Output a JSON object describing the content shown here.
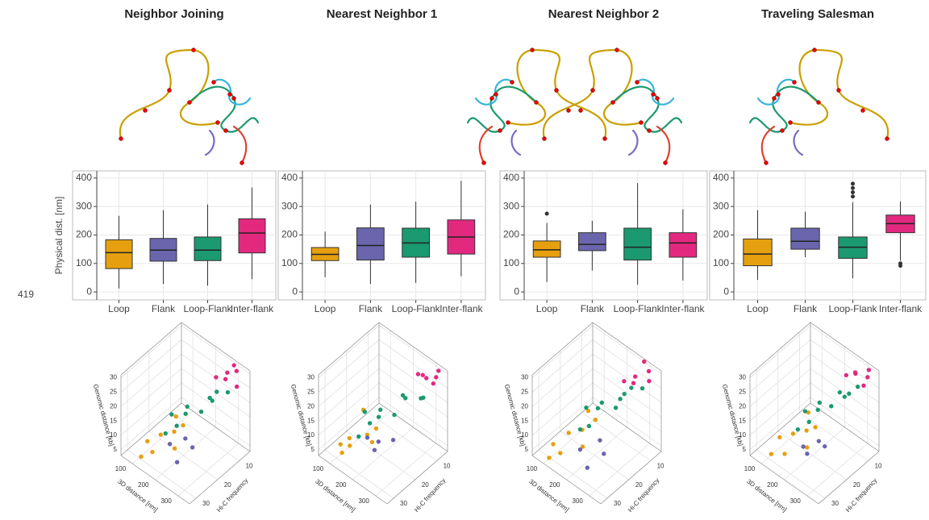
{
  "page_number": 419,
  "chart_data": [
    {
      "type": "box",
      "title": "Neighbor Joining",
      "ylabel": "Physical dist. [nm]",
      "categories": [
        "Loop",
        "Flank",
        "Loop-Flank",
        "Inter-flank"
      ],
      "colors": [
        "#e6a00f",
        "#6a65ad",
        "#1b9970",
        "#e2297f"
      ],
      "boxes": [
        {
          "min": 12,
          "q1": 82,
          "median": 138,
          "q3": 183,
          "max": 267,
          "outliers": []
        },
        {
          "min": 28,
          "q1": 108,
          "median": 147,
          "q3": 188,
          "max": 287,
          "outliers": []
        },
        {
          "min": 22,
          "q1": 110,
          "median": 147,
          "q3": 193,
          "max": 307,
          "outliers": []
        },
        {
          "min": 45,
          "q1": 137,
          "median": 207,
          "q3": 257,
          "max": 367,
          "outliers": []
        }
      ],
      "ylim": [
        -28,
        425
      ],
      "yticks": [
        0,
        100,
        200,
        300,
        400
      ],
      "grid": true
    },
    {
      "type": "box",
      "title": "Nearest Neighbor 1",
      "categories": [
        "Loop",
        "Flank",
        "Loop-Flank",
        "Inter-flank"
      ],
      "colors": [
        "#e6a00f",
        "#6a65ad",
        "#1b9970",
        "#e2297f"
      ],
      "boxes": [
        {
          "min": 52,
          "q1": 110,
          "median": 132,
          "q3": 156,
          "max": 212,
          "outliers": []
        },
        {
          "min": 28,
          "q1": 112,
          "median": 163,
          "q3": 225,
          "max": 307,
          "outliers": []
        },
        {
          "min": 32,
          "q1": 122,
          "median": 172,
          "q3": 224,
          "max": 317,
          "outliers": []
        },
        {
          "min": 55,
          "q1": 133,
          "median": 193,
          "q3": 253,
          "max": 390,
          "outliers": []
        }
      ],
      "ylim": [
        -28,
        425
      ],
      "yticks": [
        0,
        100,
        200,
        300,
        400
      ],
      "grid": true
    },
    {
      "type": "box",
      "title": "Nearest Neighbor 2",
      "categories": [
        "Loop",
        "Flank",
        "Loop-Flank",
        "Inter-flank"
      ],
      "colors": [
        "#e6a00f",
        "#6a65ad",
        "#1b9970",
        "#e2297f"
      ],
      "boxes": [
        {
          "min": 35,
          "q1": 122,
          "median": 148,
          "q3": 179,
          "max": 242,
          "outliers": [
            275
          ]
        },
        {
          "min": 75,
          "q1": 145,
          "median": 167,
          "q3": 208,
          "max": 250,
          "outliers": []
        },
        {
          "min": 25,
          "q1": 112,
          "median": 157,
          "q3": 224,
          "max": 382,
          "outliers": []
        },
        {
          "min": 40,
          "q1": 122,
          "median": 172,
          "q3": 208,
          "max": 290,
          "outliers": []
        }
      ],
      "ylim": [
        -28,
        425
      ],
      "yticks": [
        0,
        100,
        200,
        300,
        400
      ],
      "grid": true
    },
    {
      "type": "box",
      "title": "Traveling Salesman",
      "categories": [
        "Loop",
        "Flank",
        "Loop-Flank",
        "Inter-flank"
      ],
      "colors": [
        "#e6a00f",
        "#6a65ad",
        "#1b9970",
        "#e2297f"
      ],
      "boxes": [
        {
          "min": 42,
          "q1": 92,
          "median": 133,
          "q3": 186,
          "max": 287,
          "outliers": []
        },
        {
          "min": 122,
          "q1": 150,
          "median": 178,
          "q3": 224,
          "max": 282,
          "outliers": []
        },
        {
          "min": 48,
          "q1": 118,
          "median": 157,
          "q3": 193,
          "max": 315,
          "outliers": [
            335,
            350,
            365,
            380
          ]
        },
        {
          "min": 110,
          "q1": 208,
          "median": 240,
          "q3": 270,
          "max": 318,
          "outliers": [
            92,
            100
          ]
        }
      ],
      "ylim": [
        -28,
        425
      ],
      "yticks": [
        0,
        100,
        200,
        300,
        400
      ],
      "grid": true
    },
    {
      "type": "scatter3d",
      "xlabel": "3D distance [nm]",
      "ylabel": "Hi-C frequency",
      "zlabel": "Genomic distance [kb]",
      "xlim": [
        50,
        350
      ],
      "ylim": [
        5,
        33
      ],
      "zlim": [
        3,
        31
      ],
      "xticks": [
        100,
        200,
        300
      ],
      "yticks": [
        10,
        20,
        30
      ],
      "zticks": [
        5,
        10,
        15,
        20,
        25,
        30
      ],
      "series": [
        {
          "color": "#e6a00f",
          "x": [
            90,
            120,
            140,
            160,
            180,
            110,
            200,
            130
          ],
          "y": [
            25,
            22,
            28,
            20,
            18,
            30,
            24,
            16
          ],
          "z": [
            5,
            7,
            6,
            9,
            11,
            4,
            8,
            10
          ]
        },
        {
          "color": "#6a65ad",
          "x": [
            160,
            190,
            220,
            240
          ],
          "y": [
            22,
            18,
            25,
            20
          ],
          "z": [
            6,
            7,
            5,
            8
          ]
        },
        {
          "color": "#1b9970",
          "x": [
            130,
            170,
            210,
            240,
            270,
            300,
            190,
            250,
            160,
            280
          ],
          "y": [
            18,
            15,
            20,
            12,
            14,
            10,
            22,
            17,
            24,
            13
          ],
          "z": [
            12,
            15,
            18,
            20,
            22,
            24,
            14,
            19,
            11,
            25
          ]
        },
        {
          "color": "#e2297f",
          "x": [
            230,
            260,
            290,
            310,
            330,
            280
          ],
          "y": [
            8,
            6,
            10,
            7,
            9,
            5
          ],
          "z": [
            24,
            26,
            28,
            30,
            27,
            29
          ]
        }
      ]
    },
    {
      "type": "scatter3d",
      "xlabel": "3D distance [nm]",
      "ylabel": "Hi-C frequency",
      "zlabel": "Genomic distance [kb]",
      "xlim": [
        50,
        350
      ],
      "ylim": [
        5,
        33
      ],
      "zlim": [
        3,
        31
      ],
      "xticks": [
        100,
        200,
        300
      ],
      "yticks": [
        10,
        20,
        30
      ],
      "zticks": [
        5,
        10,
        15,
        20,
        25,
        30
      ],
      "series": [
        {
          "color": "#e6a00f",
          "x": [
            80,
            100,
            130,
            150,
            170,
            115,
            190,
            95
          ],
          "y": [
            26,
            24,
            27,
            21,
            19,
            29,
            23,
            17
          ],
          "z": [
            4,
            6,
            7,
            8,
            10,
            5,
            9,
            11
          ]
        },
        {
          "color": "#6a65ad",
          "x": [
            150,
            180,
            210,
            235
          ],
          "y": [
            21,
            19,
            24,
            18
          ],
          "z": [
            7,
            6,
            8,
            9
          ]
        },
        {
          "color": "#1b9970",
          "x": [
            120,
            160,
            200,
            230,
            260,
            290,
            180,
            240,
            150,
            310
          ],
          "y": [
            19,
            16,
            21,
            13,
            15,
            11,
            23,
            18,
            25,
            12
          ],
          "z": [
            13,
            14,
            17,
            21,
            23,
            22,
            15,
            18,
            10,
            24
          ]
        },
        {
          "color": "#e2297f",
          "x": [
            240,
            270,
            295,
            320,
            335,
            300
          ],
          "y": [
            7,
            8,
            9,
            6,
            10,
            5
          ],
          "z": [
            25,
            27,
            28,
            30,
            29,
            26
          ]
        }
      ]
    },
    {
      "type": "scatter3d",
      "xlabel": "3D distance [nm]",
      "ylabel": "Hi-C frequency",
      "zlabel": "Genomic distance [kb]",
      "xlim": [
        50,
        350
      ],
      "ylim": [
        5,
        33
      ],
      "zlim": [
        3,
        31
      ],
      "xticks": [
        100,
        200,
        300
      ],
      "yticks": [
        10,
        20,
        30
      ],
      "zticks": [
        5,
        10,
        15,
        20,
        25,
        30
      ],
      "series": [
        {
          "color": "#e6a00f",
          "x": [
            85,
            115,
            135,
            155,
            175,
            105,
            195,
            125
          ],
          "y": [
            27,
            23,
            29,
            21,
            17,
            31,
            25,
            15
          ],
          "z": [
            5,
            8,
            6,
            10,
            12,
            4,
            9,
            11
          ]
        },
        {
          "color": "#6a65ad",
          "x": [
            165,
            195,
            225,
            250
          ],
          "y": [
            23,
            17,
            26,
            21
          ],
          "z": [
            5,
            6,
            4,
            7
          ]
        },
        {
          "color": "#1b9970",
          "x": [
            135,
            175,
            205,
            245,
            265,
            305,
            185,
            255,
            165,
            285
          ],
          "y": [
            17,
            14,
            19,
            11,
            15,
            9,
            21,
            16,
            23,
            12
          ],
          "z": [
            14,
            16,
            19,
            21,
            23,
            25,
            13,
            20,
            12,
            26
          ]
        },
        {
          "color": "#e2297f",
          "x": [
            225,
            255,
            285,
            305,
            325,
            275
          ],
          "y": [
            9,
            7,
            11,
            6,
            8,
            5
          ],
          "z": [
            23,
            25,
            27,
            29,
            28,
            30
          ]
        }
      ]
    },
    {
      "type": "scatter3d",
      "xlabel": "3D distance [nm]",
      "ylabel": "Hi-C frequency",
      "zlabel": "Genomic distance [kb]",
      "xlim": [
        50,
        350
      ],
      "ylim": [
        5,
        33
      ],
      "zlim": [
        3,
        31
      ],
      "xticks": [
        100,
        200,
        300
      ],
      "yticks": [
        10,
        20,
        30
      ],
      "zticks": [
        5,
        10,
        15,
        20,
        25,
        30
      ],
      "series": [
        {
          "color": "#e6a00f",
          "x": [
            95,
            125,
            145,
            165,
            185,
            105,
            205,
            135
          ],
          "y": [
            24,
            21,
            27,
            19,
            17,
            29,
            23,
            15
          ],
          "z": [
            6,
            7,
            5,
            9,
            10,
            4,
            8,
            11
          ]
        },
        {
          "color": "#6a65ad",
          "x": [
            170,
            200,
            215,
            245
          ],
          "y": [
            21,
            17,
            24,
            19
          ],
          "z": [
            5,
            6,
            7,
            8
          ]
        },
        {
          "color": "#1b9970",
          "x": [
            140,
            175,
            215,
            235,
            275,
            295,
            195,
            245,
            165,
            285
          ],
          "y": [
            17,
            14,
            19,
            11,
            13,
            9,
            21,
            16,
            23,
            12
          ],
          "z": [
            13,
            16,
            19,
            21,
            23,
            25,
            15,
            20,
            12,
            24
          ]
        },
        {
          "color": "#e2297f",
          "x": [
            235,
            265,
            285,
            315,
            330,
            300
          ],
          "y": [
            8,
            7,
            9,
            6,
            10,
            5
          ],
          "z": [
            25,
            27,
            29,
            30,
            28,
            26
          ]
        }
      ]
    }
  ]
}
